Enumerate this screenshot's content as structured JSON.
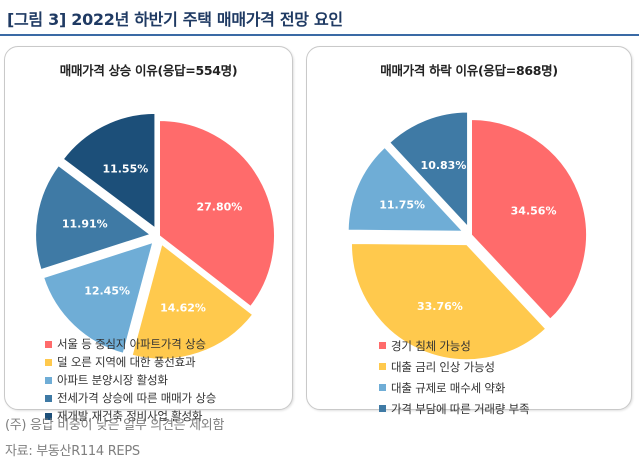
{
  "title": "[그림 3] 2022년 하반기 주택 매매가격 전망 요인",
  "note": "(주) 응답 비중이 낮은 일부 의견은 제외함",
  "source": "자료: 부동산R114 REPS",
  "chart_data": [
    {
      "type": "pie",
      "title": "매매가격 상승 이유(응답=554명)",
      "legend_position": "bottom",
      "slices": [
        {
          "label": "서울 등 중심지 아파트가격 상승",
          "value": 27.8,
          "display": "27.80%",
          "color": "#ff6b6b"
        },
        {
          "label": "덜 오른 지역에 대한 풍선효과",
          "value": 14.62,
          "display": "14.62%",
          "color": "#ffc94d"
        },
        {
          "label": "아파트 분양시장 활성화",
          "value": 12.45,
          "display": "12.45%",
          "color": "#6fadd6"
        },
        {
          "label": "전세가격 상승에 따른 매매가 상승",
          "value": 11.91,
          "display": "11.91%",
          "color": "#3f7aa5"
        },
        {
          "label": "재개발,재건축 정비사업 활성화",
          "value": 11.55,
          "display": "11.55%",
          "color": "#1c4f79"
        }
      ]
    },
    {
      "type": "pie",
      "title": "매매가격 하락 이유(응답=868명)",
      "legend_position": "bottom",
      "slices": [
        {
          "label": "경기 침체 가능성",
          "value": 34.56,
          "display": "34.56%",
          "color": "#ff6b6b"
        },
        {
          "label": "대출 금리 인상 가능성",
          "value": 33.76,
          "display": "33.76%",
          "color": "#ffc94d"
        },
        {
          "label": "대출 규제로 매수세 약화",
          "value": 11.75,
          "display": "11.75%",
          "color": "#6fadd6"
        },
        {
          "label": "가격 부담에 따른 거래량 부족",
          "value": 10.83,
          "display": "10.83%",
          "color": "#3f7aa5"
        }
      ]
    }
  ]
}
